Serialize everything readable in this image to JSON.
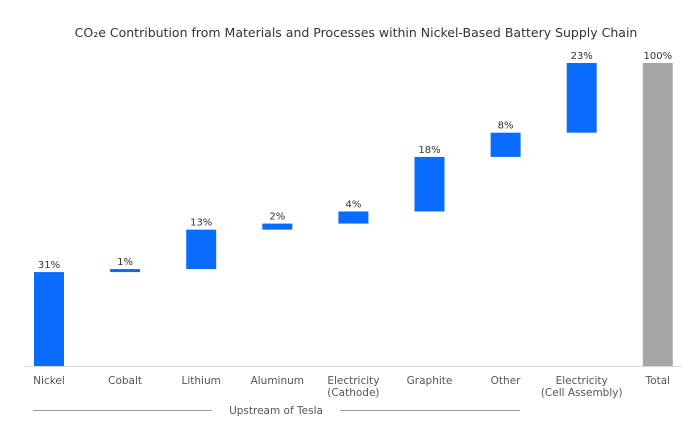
{
  "chart_data": {
    "type": "waterfall",
    "title": "CO₂e Contribution from Materials and Processes within Nickel-Based Battery Supply Chain",
    "categories": [
      [
        "Nickel"
      ],
      [
        "Cobalt"
      ],
      [
        "Lithium"
      ],
      [
        "Aluminum"
      ],
      [
        "Electricity",
        "(Cathode)"
      ],
      [
        "Graphite"
      ],
      [
        "Other"
      ],
      [
        "Electricity",
        "(Cell Assembly)"
      ],
      [
        "Total"
      ]
    ],
    "values": [
      31,
      1,
      13,
      2,
      4,
      18,
      8,
      23,
      100
    ],
    "data_labels": [
      "31%",
      "1%",
      "13%",
      "2%",
      "4%",
      "18%",
      "8%",
      "23%",
      "100%"
    ],
    "is_total": [
      false,
      false,
      false,
      false,
      false,
      false,
      false,
      false,
      true
    ],
    "ylim": [
      0,
      100
    ],
    "grid": false,
    "colors": {
      "increment": "#0a6cff",
      "total": "#a6a6a6",
      "axis": "#d9d9d9",
      "bracket": "#999999"
    },
    "group_bracket": {
      "label": "Upstream of Tesla",
      "from_category": "Nickel",
      "to_category": "Electricity (Cell Assembly)"
    }
  }
}
